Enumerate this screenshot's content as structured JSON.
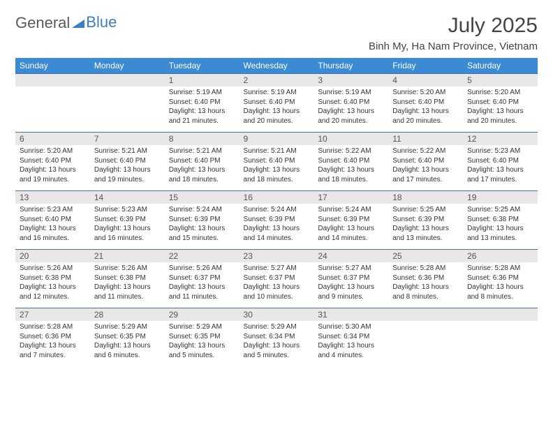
{
  "brand": {
    "general": "General",
    "blue": "Blue"
  },
  "title": "July 2025",
  "location": "Binh My, Ha Nam Province, Vietnam",
  "colors": {
    "header_bg": "#3b8bd4",
    "header_fg": "#ffffff",
    "daynum_bg": "#e8e8e8",
    "border": "#4a6fa5",
    "text": "#333333",
    "brand_gray": "#5a5a5a",
    "brand_blue": "#3b7fc4"
  },
  "day_headers": [
    "Sunday",
    "Monday",
    "Tuesday",
    "Wednesday",
    "Thursday",
    "Friday",
    "Saturday"
  ],
  "weeks": [
    [
      {
        "n": "",
        "empty": true
      },
      {
        "n": "",
        "empty": true
      },
      {
        "n": "1",
        "sr": "Sunrise: 5:19 AM",
        "ss": "Sunset: 6:40 PM",
        "dl": "Daylight: 13 hours and 21 minutes."
      },
      {
        "n": "2",
        "sr": "Sunrise: 5:19 AM",
        "ss": "Sunset: 6:40 PM",
        "dl": "Daylight: 13 hours and 20 minutes."
      },
      {
        "n": "3",
        "sr": "Sunrise: 5:19 AM",
        "ss": "Sunset: 6:40 PM",
        "dl": "Daylight: 13 hours and 20 minutes."
      },
      {
        "n": "4",
        "sr": "Sunrise: 5:20 AM",
        "ss": "Sunset: 6:40 PM",
        "dl": "Daylight: 13 hours and 20 minutes."
      },
      {
        "n": "5",
        "sr": "Sunrise: 5:20 AM",
        "ss": "Sunset: 6:40 PM",
        "dl": "Daylight: 13 hours and 20 minutes."
      }
    ],
    [
      {
        "n": "6",
        "sr": "Sunrise: 5:20 AM",
        "ss": "Sunset: 6:40 PM",
        "dl": "Daylight: 13 hours and 19 minutes."
      },
      {
        "n": "7",
        "sr": "Sunrise: 5:21 AM",
        "ss": "Sunset: 6:40 PM",
        "dl": "Daylight: 13 hours and 19 minutes."
      },
      {
        "n": "8",
        "sr": "Sunrise: 5:21 AM",
        "ss": "Sunset: 6:40 PM",
        "dl": "Daylight: 13 hours and 18 minutes."
      },
      {
        "n": "9",
        "sr": "Sunrise: 5:21 AM",
        "ss": "Sunset: 6:40 PM",
        "dl": "Daylight: 13 hours and 18 minutes."
      },
      {
        "n": "10",
        "sr": "Sunrise: 5:22 AM",
        "ss": "Sunset: 6:40 PM",
        "dl": "Daylight: 13 hours and 18 minutes."
      },
      {
        "n": "11",
        "sr": "Sunrise: 5:22 AM",
        "ss": "Sunset: 6:40 PM",
        "dl": "Daylight: 13 hours and 17 minutes."
      },
      {
        "n": "12",
        "sr": "Sunrise: 5:23 AM",
        "ss": "Sunset: 6:40 PM",
        "dl": "Daylight: 13 hours and 17 minutes."
      }
    ],
    [
      {
        "n": "13",
        "sr": "Sunrise: 5:23 AM",
        "ss": "Sunset: 6:40 PM",
        "dl": "Daylight: 13 hours and 16 minutes."
      },
      {
        "n": "14",
        "sr": "Sunrise: 5:23 AM",
        "ss": "Sunset: 6:39 PM",
        "dl": "Daylight: 13 hours and 16 minutes."
      },
      {
        "n": "15",
        "sr": "Sunrise: 5:24 AM",
        "ss": "Sunset: 6:39 PM",
        "dl": "Daylight: 13 hours and 15 minutes."
      },
      {
        "n": "16",
        "sr": "Sunrise: 5:24 AM",
        "ss": "Sunset: 6:39 PM",
        "dl": "Daylight: 13 hours and 14 minutes."
      },
      {
        "n": "17",
        "sr": "Sunrise: 5:24 AM",
        "ss": "Sunset: 6:39 PM",
        "dl": "Daylight: 13 hours and 14 minutes."
      },
      {
        "n": "18",
        "sr": "Sunrise: 5:25 AM",
        "ss": "Sunset: 6:39 PM",
        "dl": "Daylight: 13 hours and 13 minutes."
      },
      {
        "n": "19",
        "sr": "Sunrise: 5:25 AM",
        "ss": "Sunset: 6:38 PM",
        "dl": "Daylight: 13 hours and 13 minutes."
      }
    ],
    [
      {
        "n": "20",
        "sr": "Sunrise: 5:26 AM",
        "ss": "Sunset: 6:38 PM",
        "dl": "Daylight: 13 hours and 12 minutes."
      },
      {
        "n": "21",
        "sr": "Sunrise: 5:26 AM",
        "ss": "Sunset: 6:38 PM",
        "dl": "Daylight: 13 hours and 11 minutes."
      },
      {
        "n": "22",
        "sr": "Sunrise: 5:26 AM",
        "ss": "Sunset: 6:37 PM",
        "dl": "Daylight: 13 hours and 11 minutes."
      },
      {
        "n": "23",
        "sr": "Sunrise: 5:27 AM",
        "ss": "Sunset: 6:37 PM",
        "dl": "Daylight: 13 hours and 10 minutes."
      },
      {
        "n": "24",
        "sr": "Sunrise: 5:27 AM",
        "ss": "Sunset: 6:37 PM",
        "dl": "Daylight: 13 hours and 9 minutes."
      },
      {
        "n": "25",
        "sr": "Sunrise: 5:28 AM",
        "ss": "Sunset: 6:36 PM",
        "dl": "Daylight: 13 hours and 8 minutes."
      },
      {
        "n": "26",
        "sr": "Sunrise: 5:28 AM",
        "ss": "Sunset: 6:36 PM",
        "dl": "Daylight: 13 hours and 8 minutes."
      }
    ],
    [
      {
        "n": "27",
        "sr": "Sunrise: 5:28 AM",
        "ss": "Sunset: 6:36 PM",
        "dl": "Daylight: 13 hours and 7 minutes."
      },
      {
        "n": "28",
        "sr": "Sunrise: 5:29 AM",
        "ss": "Sunset: 6:35 PM",
        "dl": "Daylight: 13 hours and 6 minutes."
      },
      {
        "n": "29",
        "sr": "Sunrise: 5:29 AM",
        "ss": "Sunset: 6:35 PM",
        "dl": "Daylight: 13 hours and 5 minutes."
      },
      {
        "n": "30",
        "sr": "Sunrise: 5:29 AM",
        "ss": "Sunset: 6:34 PM",
        "dl": "Daylight: 13 hours and 5 minutes."
      },
      {
        "n": "31",
        "sr": "Sunrise: 5:30 AM",
        "ss": "Sunset: 6:34 PM",
        "dl": "Daylight: 13 hours and 4 minutes."
      },
      {
        "n": "",
        "empty": true
      },
      {
        "n": "",
        "empty": true
      }
    ]
  ]
}
